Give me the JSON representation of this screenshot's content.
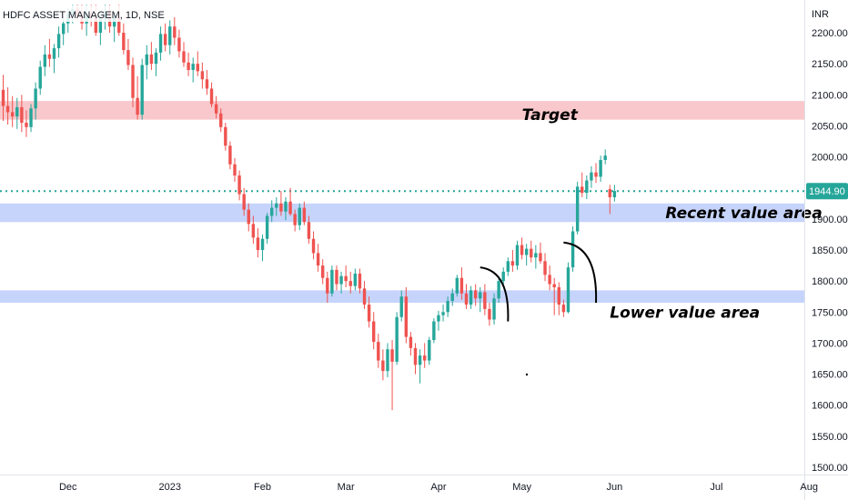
{
  "chart_data": {
    "type": "candlestick",
    "title": "HDFC ASSET MANAGEM, 1D, NSE",
    "currency": "INR",
    "y_range": [
      1490,
      2245
    ],
    "y_ticks": [
      2200,
      2150,
      2100,
      2050,
      2000,
      1950,
      1900,
      1850,
      1800,
      1750,
      1700,
      1650,
      1600,
      1550,
      1500
    ],
    "y_tick_labels": [
      "2200.00",
      "2150.00",
      "2100.00",
      "2050.00",
      "2000.00",
      "1950.00",
      "1900.00",
      "1850.00",
      "1800.00",
      "1750.00",
      "1700.00",
      "1650.00",
      "1600.00",
      "1550.00",
      "1500.00"
    ],
    "x_axis": {
      "labels": [
        "Dec",
        "2023",
        "Feb",
        "Mar",
        "Apr",
        "May",
        "Jun",
        "Jul",
        "Aug"
      ],
      "label_bar_index": [
        14,
        36,
        56,
        74,
        94,
        112,
        132,
        154,
        174
      ]
    },
    "last_price": 1944.9,
    "last_price_label": "1944.90",
    "colors": {
      "up": "#26a69a",
      "down": "#ef5350",
      "target_zone": "#f8c8cc",
      "value_zone": "#c6d4fb",
      "price_line": "#26a69a"
    },
    "zones": [
      {
        "label": "Target",
        "low": 2060,
        "high": 2090,
        "color": "#f8c8cc"
      },
      {
        "label": "Recent value area",
        "low": 1895,
        "high": 1925,
        "color": "#c6d4fb"
      },
      {
        "label": "Lower value area",
        "low": 1765,
        "high": 1785,
        "color": "#c6d4fb"
      }
    ],
    "annotations": [
      {
        "text": "Target",
        "bar": 112,
        "price": 2068
      },
      {
        "text": "Recent value area",
        "bar": 143,
        "price": 1910
      },
      {
        "text": "Lower value area",
        "bar": 131,
        "price": 1750
      }
    ],
    "arcs": [
      {
        "from": [
          103,
          1822
        ],
        "to": [
          109,
          1735
        ]
      },
      {
        "from": [
          121,
          1862
        ],
        "to": [
          128,
          1765
        ]
      }
    ],
    "ohlc": [
      [
        2108,
        2132,
        2058,
        2082
      ],
      [
        2082,
        2112,
        2052,
        2072
      ],
      [
        2072,
        2098,
        2048,
        2065
      ],
      [
        2065,
        2095,
        2045,
        2080
      ],
      [
        2080,
        2100,
        2040,
        2055
      ],
      [
        2055,
        2075,
        2032,
        2048
      ],
      [
        2048,
        2085,
        2040,
        2078
      ],
      [
        2078,
        2120,
        2060,
        2110
      ],
      [
        2110,
        2155,
        2100,
        2145
      ],
      [
        2145,
        2180,
        2130,
        2165
      ],
      [
        2165,
        2190,
        2145,
        2158
      ],
      [
        2158,
        2182,
        2135,
        2175
      ],
      [
        2175,
        2210,
        2160,
        2198
      ],
      [
        2198,
        2225,
        2180,
        2215
      ],
      [
        2215,
        2240,
        2200,
        2230
      ],
      [
        2230,
        2245,
        2215,
        2238
      ],
      [
        2238,
        2245,
        2220,
        2228
      ],
      [
        2228,
        2245,
        2205,
        2215
      ],
      [
        2215,
        2245,
        2195,
        2230
      ],
      [
        2230,
        2245,
        2210,
        2225
      ],
      [
        2225,
        2245,
        2195,
        2200
      ],
      [
        2200,
        2230,
        2180,
        2222
      ],
      [
        2222,
        2245,
        2205,
        2235
      ],
      [
        2235,
        2245,
        2200,
        2210
      ],
      [
        2210,
        2230,
        2185,
        2225
      ],
      [
        2225,
        2245,
        2195,
        2200
      ],
      [
        2200,
        2215,
        2165,
        2172
      ],
      [
        2172,
        2190,
        2140,
        2148
      ],
      [
        2148,
        2160,
        2080,
        2095
      ],
      [
        2095,
        2130,
        2060,
        2068
      ],
      [
        2068,
        2158,
        2060,
        2148
      ],
      [
        2148,
        2180,
        2125,
        2165
      ],
      [
        2165,
        2185,
        2140,
        2150
      ],
      [
        2150,
        2175,
        2130,
        2168
      ],
      [
        2168,
        2210,
        2155,
        2198
      ],
      [
        2198,
        2215,
        2170,
        2180
      ],
      [
        2180,
        2220,
        2165,
        2210
      ],
      [
        2210,
        2225,
        2180,
        2192
      ],
      [
        2192,
        2205,
        2160,
        2170
      ],
      [
        2170,
        2185,
        2145,
        2152
      ],
      [
        2152,
        2168,
        2130,
        2140
      ],
      [
        2140,
        2160,
        2120,
        2150
      ],
      [
        2150,
        2170,
        2130,
        2138
      ],
      [
        2138,
        2152,
        2110,
        2125
      ],
      [
        2125,
        2140,
        2100,
        2110
      ],
      [
        2110,
        2120,
        2080,
        2085
      ],
      [
        2085,
        2098,
        2062,
        2070
      ],
      [
        2070,
        2078,
        2040,
        2048
      ],
      [
        2048,
        2055,
        2010,
        2018
      ],
      [
        2018,
        2025,
        1980,
        1988
      ],
      [
        1988,
        1998,
        1960,
        1970
      ],
      [
        1970,
        1978,
        1930,
        1940
      ],
      [
        1940,
        1950,
        1905,
        1915
      ],
      [
        1915,
        1925,
        1880,
        1892
      ],
      [
        1892,
        1905,
        1860,
        1870
      ],
      [
        1870,
        1885,
        1838,
        1850
      ],
      [
        1850,
        1875,
        1832,
        1868
      ],
      [
        1868,
        1910,
        1860,
        1905
      ],
      [
        1905,
        1930,
        1895,
        1918
      ],
      [
        1918,
        1935,
        1905,
        1925
      ],
      [
        1925,
        1945,
        1905,
        1912
      ],
      [
        1912,
        1935,
        1898,
        1928
      ],
      [
        1928,
        1950,
        1905,
        1908
      ],
      [
        1908,
        1915,
        1880,
        1890
      ],
      [
        1890,
        1925,
        1882,
        1918
      ],
      [
        1918,
        1928,
        1890,
        1895
      ],
      [
        1895,
        1905,
        1860,
        1868
      ],
      [
        1868,
        1880,
        1835,
        1845
      ],
      [
        1845,
        1860,
        1815,
        1825
      ],
      [
        1825,
        1835,
        1795,
        1805
      ],
      [
        1805,
        1815,
        1765,
        1780
      ],
      [
        1780,
        1825,
        1775,
        1818
      ],
      [
        1818,
        1825,
        1785,
        1795
      ],
      [
        1795,
        1815,
        1780,
        1808
      ],
      [
        1808,
        1825,
        1790,
        1800
      ],
      [
        1800,
        1815,
        1780,
        1792
      ],
      [
        1792,
        1820,
        1785,
        1812
      ],
      [
        1812,
        1820,
        1780,
        1788
      ],
      [
        1788,
        1800,
        1755,
        1762
      ],
      [
        1762,
        1775,
        1725,
        1735
      ],
      [
        1735,
        1750,
        1690,
        1702
      ],
      [
        1702,
        1715,
        1660,
        1672
      ],
      [
        1672,
        1690,
        1640,
        1655
      ],
      [
        1655,
        1700,
        1645,
        1690
      ],
      [
        1690,
        1705,
        1592,
        1670
      ],
      [
        1670,
        1750,
        1665,
        1742
      ],
      [
        1742,
        1785,
        1735,
        1775
      ],
      [
        1775,
        1790,
        1700,
        1710
      ],
      [
        1710,
        1718,
        1680,
        1692
      ],
      [
        1692,
        1700,
        1650,
        1665
      ],
      [
        1665,
        1690,
        1635,
        1680
      ],
      [
        1680,
        1700,
        1660,
        1672
      ],
      [
        1672,
        1710,
        1665,
        1705
      ],
      [
        1705,
        1740,
        1700,
        1735
      ],
      [
        1735,
        1752,
        1720,
        1745
      ],
      [
        1745,
        1762,
        1735,
        1750
      ],
      [
        1750,
        1775,
        1742,
        1768
      ],
      [
        1768,
        1788,
        1760,
        1780
      ],
      [
        1780,
        1810,
        1775,
        1805
      ],
      [
        1805,
        1822,
        1770,
        1780
      ],
      [
        1780,
        1795,
        1755,
        1762
      ],
      [
        1762,
        1792,
        1755,
        1785
      ],
      [
        1785,
        1795,
        1760,
        1772
      ],
      [
        1772,
        1790,
        1750,
        1782
      ],
      [
        1782,
        1795,
        1745,
        1755
      ],
      [
        1755,
        1765,
        1728,
        1738
      ],
      [
        1738,
        1780,
        1730,
        1772
      ],
      [
        1772,
        1808,
        1765,
        1800
      ],
      [
        1800,
        1822,
        1792,
        1815
      ],
      [
        1815,
        1838,
        1808,
        1832
      ],
      [
        1832,
        1850,
        1815,
        1825
      ],
      [
        1825,
        1865,
        1818,
        1858
      ],
      [
        1858,
        1870,
        1835,
        1842
      ],
      [
        1842,
        1860,
        1825,
        1852
      ],
      [
        1852,
        1865,
        1830,
        1838
      ],
      [
        1838,
        1858,
        1820,
        1845
      ],
      [
        1845,
        1862,
        1828,
        1832
      ],
      [
        1832,
        1845,
        1800,
        1810
      ],
      [
        1810,
        1825,
        1785,
        1795
      ],
      [
        1795,
        1805,
        1745,
        1790
      ],
      [
        1790,
        1798,
        1745,
        1762
      ],
      [
        1762,
        1770,
        1742,
        1750
      ],
      [
        1750,
        1830,
        1748,
        1822
      ],
      [
        1822,
        1888,
        1815,
        1880
      ],
      [
        1880,
        1960,
        1875,
        1952
      ],
      [
        1952,
        1975,
        1935,
        1942
      ],
      [
        1942,
        1970,
        1932,
        1962
      ],
      [
        1962,
        1985,
        1950,
        1975
      ],
      [
        1975,
        1990,
        1958,
        1968
      ],
      [
        1968,
        2002,
        1960,
        1995
      ],
      [
        1995,
        2012,
        1988,
        2002
      ],
      [
        1948,
        1955,
        1908,
        1935
      ],
      [
        1935,
        1955,
        1928,
        1945
      ]
    ]
  }
}
